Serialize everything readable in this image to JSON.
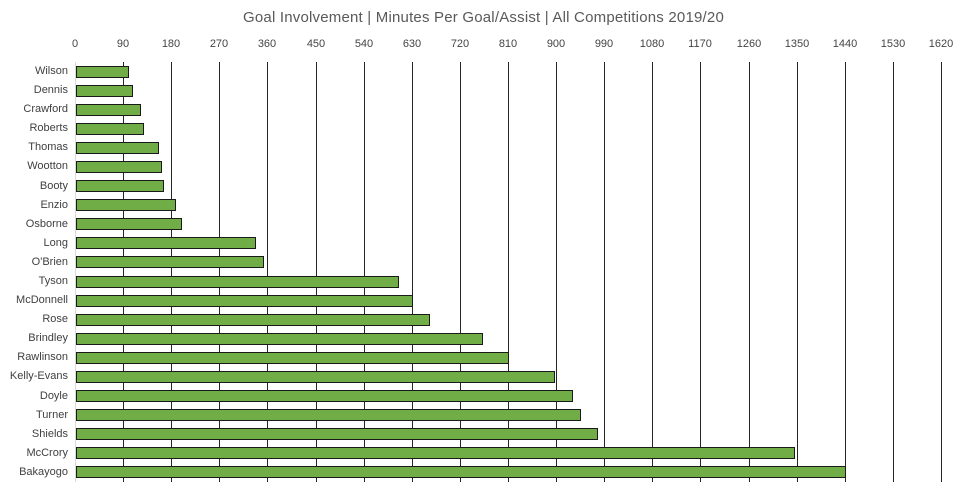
{
  "chart_data": {
    "type": "bar",
    "orientation": "horizontal",
    "title": "Goal Involvement | Minutes Per Goal/Assist | All Competitions 2019/20",
    "xlabel": "",
    "ylabel": "",
    "xlim": [
      0,
      1620
    ],
    "x_ticks": [
      0,
      90,
      180,
      270,
      360,
      450,
      540,
      630,
      720,
      810,
      900,
      990,
      1080,
      1170,
      1260,
      1350,
      1440,
      1530,
      1620
    ],
    "grid": true,
    "legend": "none",
    "categories": [
      "Wilson",
      "Dennis",
      "Crawford",
      "Roberts",
      "Thomas",
      "Wootton",
      "Booty",
      "Enzio",
      "Osborne",
      "Long",
      "O'Brien",
      "Tyson",
      "McDonnell",
      "Rose",
      "Brindley",
      "Rawlinson",
      "Kelly-Evans",
      "Doyle",
      "Turner",
      "Shields",
      "McCrory",
      "Bakayogo"
    ],
    "values": [
      100,
      106,
      121,
      127,
      155,
      161,
      164,
      187,
      199,
      337,
      352,
      605,
      630,
      663,
      762,
      810,
      896,
      930,
      945,
      977,
      1345,
      1440
    ],
    "colors": {
      "bar_fill": "#70AD47",
      "bar_border": "#1a1a1a",
      "gridline": "#262626",
      "axis_line": "#d9d9d9",
      "title_text": "#595959",
      "tick_text": "#444444",
      "category_text": "#404040"
    }
  }
}
